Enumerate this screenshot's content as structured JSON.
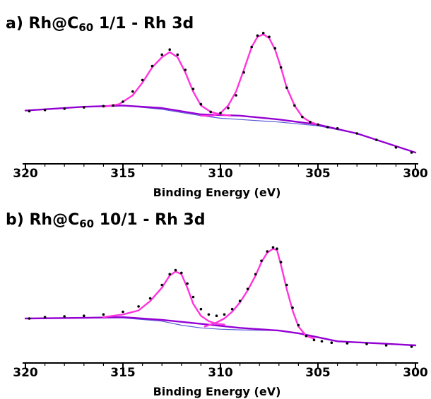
{
  "colors": {
    "data_points": "#000000",
    "peak_fit": "#ff33dd",
    "background": "#9400d3",
    "envelope": "#5a5ad6"
  },
  "chart_data": [
    {
      "type": "line",
      "title_prefix": "a) Rh@C",
      "title_sub": "60",
      "title_suffix": " 1/1 - Rh 3d",
      "xlabel": "Binding Energy (eV)",
      "ylabel": "",
      "xlim": [
        320,
        300
      ],
      "x_reversed": true,
      "xticks": [
        320,
        315,
        310,
        305,
        300
      ],
      "ylim": [
        0,
        1
      ],
      "grid": false,
      "series": [
        {
          "type": "scatter",
          "role": "data_points",
          "x": [
            319.8,
            319,
            318,
            317,
            316,
            315.5,
            315,
            314.5,
            314,
            313.5,
            313,
            312.6,
            312.2,
            311.8,
            311.4,
            311,
            310.5,
            310,
            309.6,
            309.2,
            308.8,
            308.4,
            308.1,
            307.8,
            307.5,
            307.2,
            306.9,
            306.6,
            306.2,
            305.8,
            305.4,
            305,
            304.5,
            304,
            303,
            302,
            301,
            300.2
          ],
          "y": [
            0.375,
            0.385,
            0.395,
            0.405,
            0.415,
            0.42,
            0.45,
            0.53,
            0.62,
            0.73,
            0.82,
            0.86,
            0.82,
            0.7,
            0.55,
            0.43,
            0.37,
            0.36,
            0.4,
            0.5,
            0.68,
            0.88,
            0.97,
            0.99,
            0.96,
            0.87,
            0.72,
            0.56,
            0.42,
            0.33,
            0.29,
            0.27,
            0.25,
            0.24,
            0.2,
            0.15,
            0.09,
            0.05
          ]
        },
        {
          "type": "line",
          "role": "background",
          "x": [
            320,
            317,
            315,
            313,
            311,
            309,
            307,
            305,
            303,
            301,
            300
          ],
          "y": [
            0.38,
            0.41,
            0.42,
            0.4,
            0.35,
            0.34,
            0.31,
            0.27,
            0.2,
            0.1,
            0.05
          ]
        },
        {
          "type": "line",
          "role": "envelope",
          "x": [
            320,
            317,
            315,
            313,
            311,
            310,
            309,
            307,
            305,
            303,
            301,
            300
          ],
          "y": [
            0.38,
            0.41,
            0.42,
            0.39,
            0.34,
            0.32,
            0.31,
            0.29,
            0.26,
            0.2,
            0.1,
            0.05
          ]
        },
        {
          "type": "line",
          "role": "peak_fit_3d3/2",
          "x": [
            316,
            315.2,
            314.5,
            314,
            313.5,
            313,
            312.6,
            312.2,
            311.8,
            311.4,
            311,
            310.5,
            310,
            309.5
          ],
          "y": [
            0.41,
            0.43,
            0.5,
            0.6,
            0.72,
            0.8,
            0.84,
            0.8,
            0.68,
            0.53,
            0.42,
            0.37,
            0.35,
            0.34
          ]
        },
        {
          "type": "line",
          "role": "peak_fit_3d5/2",
          "x": [
            311,
            310.4,
            310,
            309.6,
            309.2,
            308.8,
            308.4,
            308.1,
            307.8,
            307.5,
            307.2,
            306.9,
            306.6,
            306.2,
            305.8,
            305.4,
            305
          ],
          "y": [
            0.34,
            0.34,
            0.36,
            0.42,
            0.53,
            0.7,
            0.88,
            0.96,
            0.98,
            0.95,
            0.86,
            0.72,
            0.56,
            0.42,
            0.33,
            0.29,
            0.27
          ]
        }
      ]
    },
    {
      "type": "line",
      "title_prefix": "b) Rh@C",
      "title_sub": "60",
      "title_suffix": " 10/1 - Rh 3d",
      "xlabel": "Binding Energy (eV)",
      "ylabel": "",
      "xlim": [
        320,
        300
      ],
      "x_reversed": true,
      "xticks": [
        320,
        315,
        310,
        305,
        300
      ],
      "ylim": [
        0,
        1
      ],
      "grid": false,
      "series": [
        {
          "type": "scatter",
          "role": "data_points",
          "x": [
            319.8,
            319,
            318,
            317,
            316,
            315,
            314.2,
            313.6,
            313,
            312.6,
            312.3,
            312,
            311.7,
            311.4,
            311,
            310.6,
            310.2,
            309.8,
            309.4,
            309,
            308.6,
            308.2,
            307.9,
            307.6,
            307.3,
            307.1,
            306.9,
            306.6,
            306.3,
            306,
            305.6,
            305.2,
            304.8,
            304.3,
            303.5,
            302.5,
            301.5,
            300.2
          ],
          "y": [
            0.3,
            0.31,
            0.315,
            0.32,
            0.33,
            0.35,
            0.39,
            0.45,
            0.55,
            0.63,
            0.66,
            0.64,
            0.56,
            0.46,
            0.37,
            0.33,
            0.32,
            0.33,
            0.37,
            0.43,
            0.52,
            0.63,
            0.73,
            0.8,
            0.83,
            0.82,
            0.72,
            0.55,
            0.38,
            0.25,
            0.17,
            0.14,
            0.13,
            0.12,
            0.115,
            0.11,
            0.1,
            0.09
          ]
        },
        {
          "type": "line",
          "role": "background",
          "x": [
            320,
            317,
            315,
            313,
            311,
            309,
            307,
            306,
            305,
            304,
            302,
            300
          ],
          "y": [
            0.3,
            0.305,
            0.31,
            0.29,
            0.26,
            0.23,
            0.21,
            0.19,
            0.16,
            0.13,
            0.115,
            0.1
          ]
        },
        {
          "type": "line",
          "role": "envelope",
          "x": [
            320,
            317,
            315,
            313,
            312,
            311,
            310,
            309,
            307,
            306,
            305,
            304,
            302,
            300
          ],
          "y": [
            0.3,
            0.305,
            0.305,
            0.28,
            0.25,
            0.23,
            0.22,
            0.215,
            0.21,
            0.19,
            0.16,
            0.13,
            0.115,
            0.1
          ]
        },
        {
          "type": "line",
          "role": "peak_fit_3d3/2",
          "x": [
            316,
            315,
            314.2,
            313.6,
            313,
            312.6,
            312.3,
            312,
            311.7,
            311.4,
            311,
            310.6,
            310.2,
            309.8
          ],
          "y": [
            0.31,
            0.33,
            0.36,
            0.43,
            0.53,
            0.62,
            0.65,
            0.63,
            0.53,
            0.41,
            0.32,
            0.28,
            0.26,
            0.255
          ]
        },
        {
          "type": "line",
          "role": "peak_fit_3d5/2",
          "x": [
            310.8,
            310.2,
            309.8,
            309.4,
            309,
            308.6,
            308.2,
            307.9,
            307.6,
            307.3,
            307.1,
            306.9,
            306.6,
            306.3,
            306,
            305.6,
            305.2
          ],
          "y": [
            0.24,
            0.27,
            0.3,
            0.35,
            0.42,
            0.51,
            0.62,
            0.72,
            0.79,
            0.82,
            0.81,
            0.7,
            0.52,
            0.36,
            0.24,
            0.17,
            0.15
          ]
        }
      ]
    }
  ]
}
